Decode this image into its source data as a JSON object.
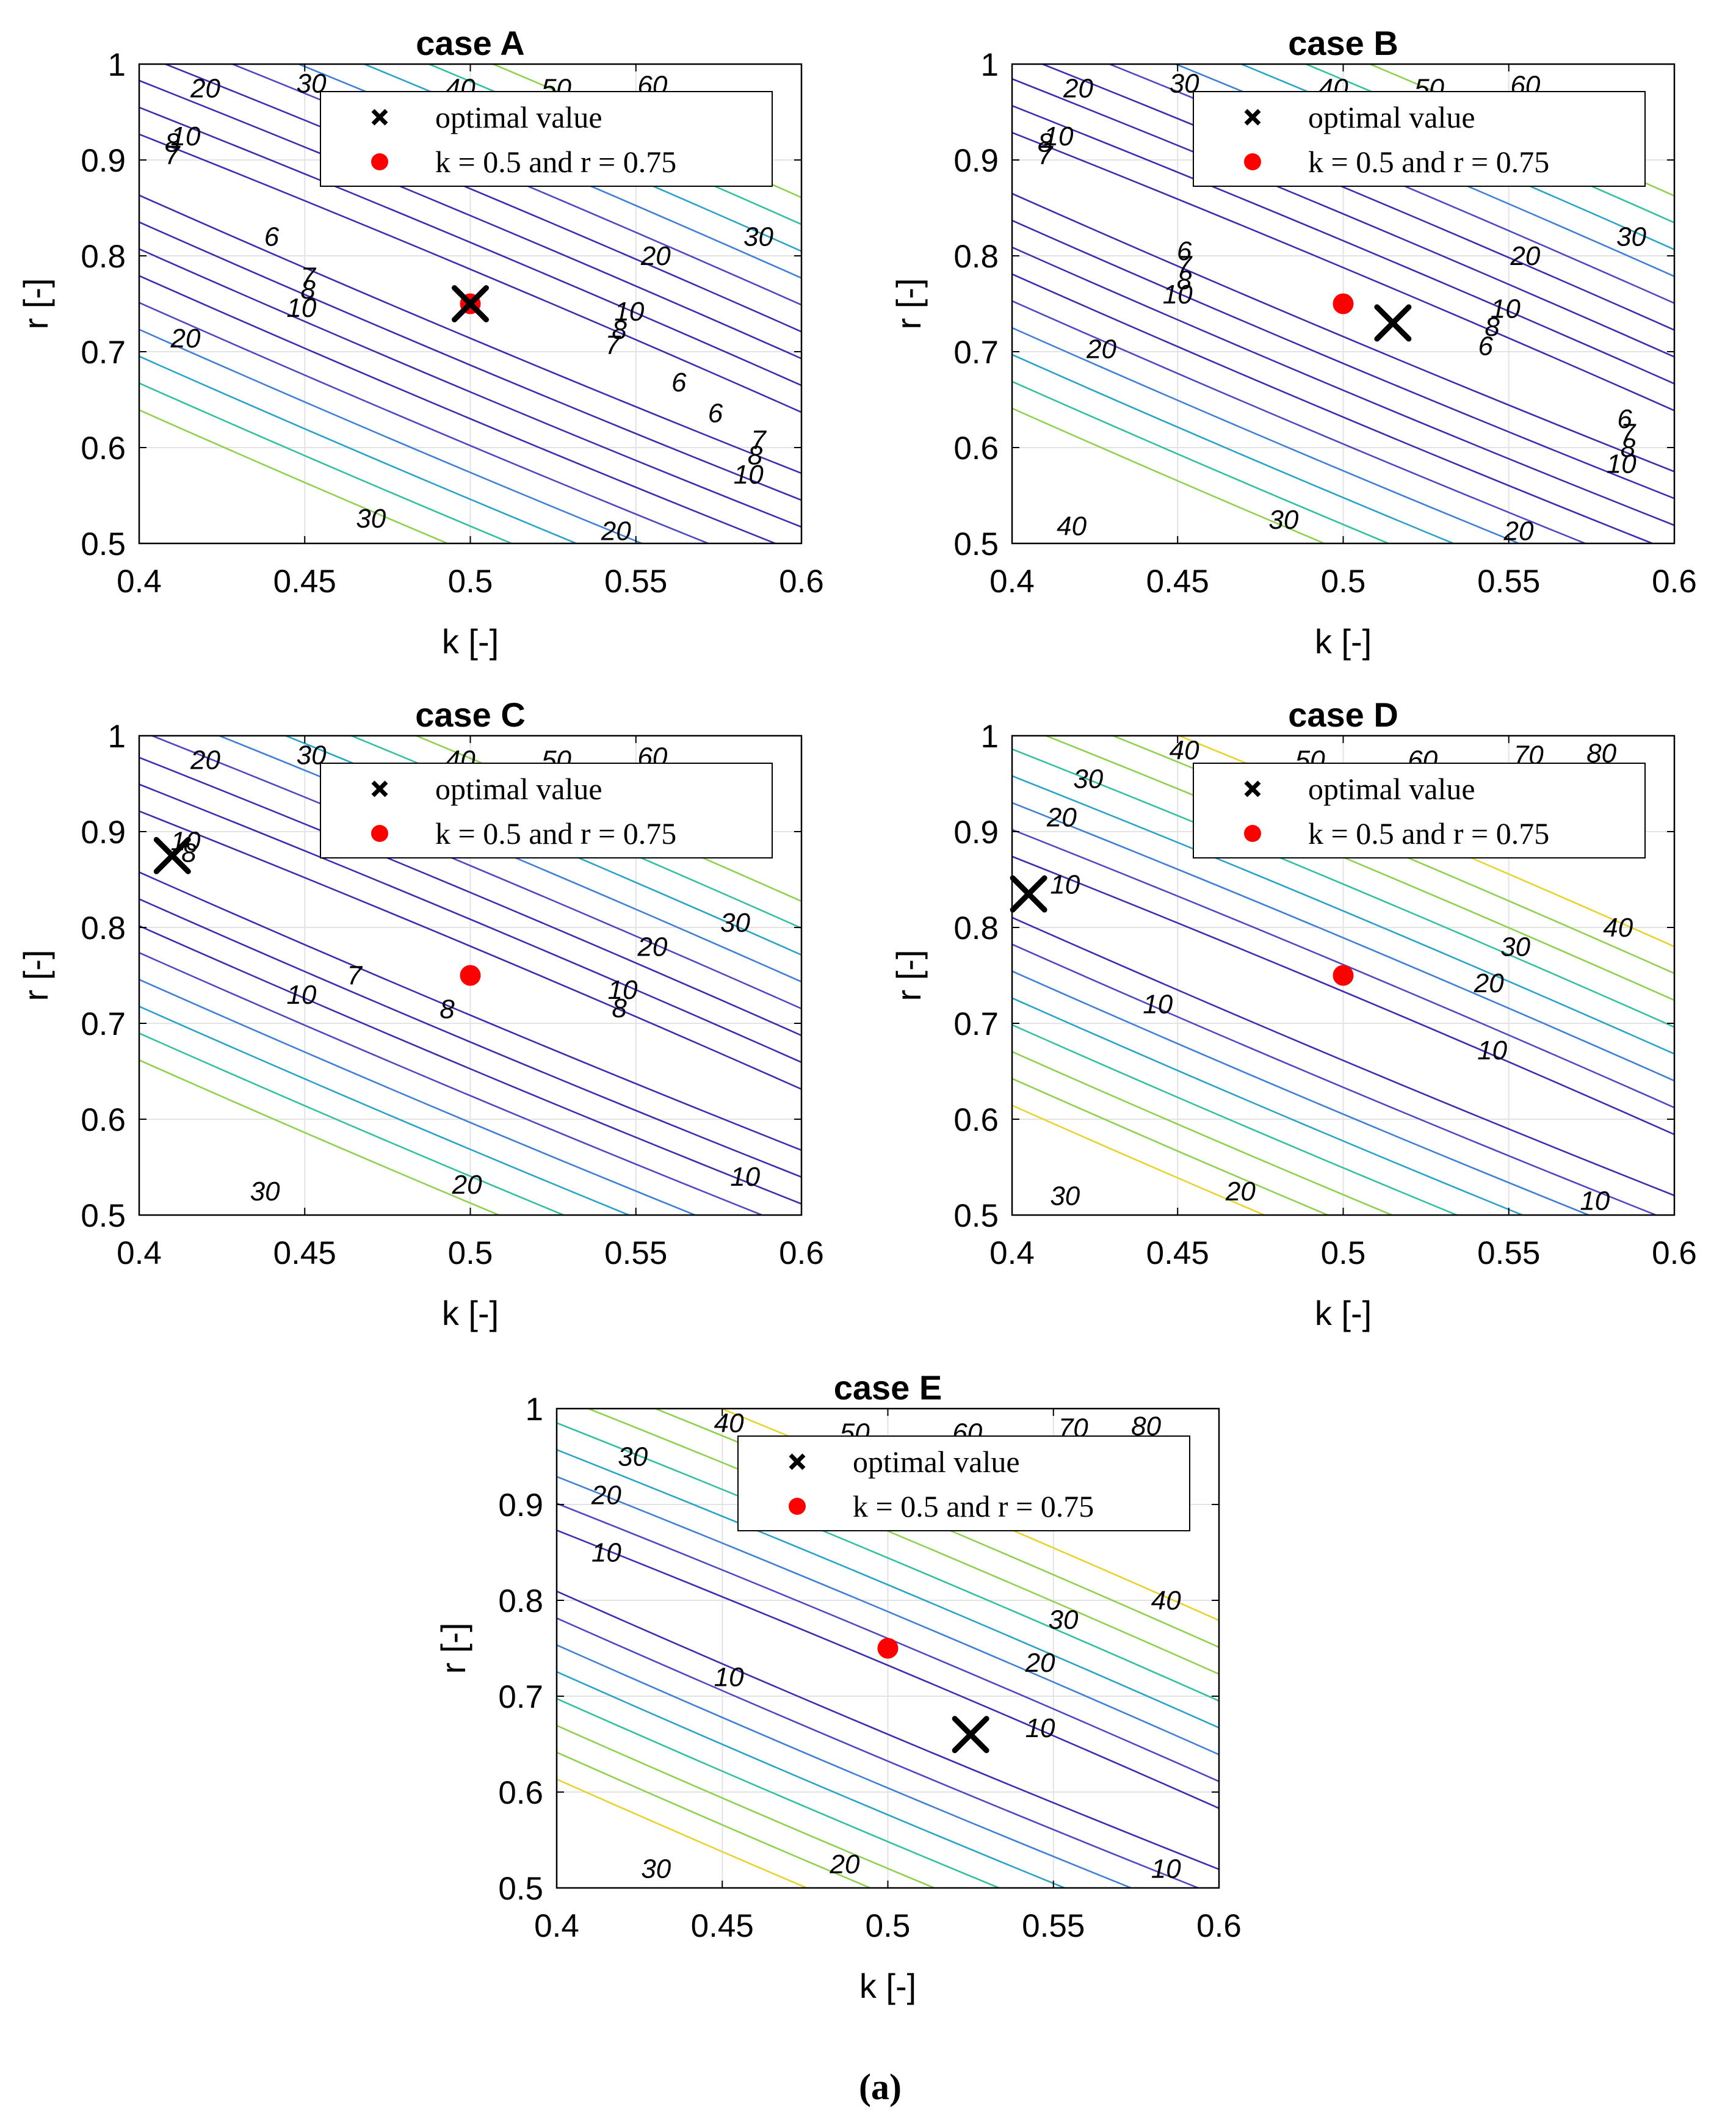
{
  "figure_caption": "(a)",
  "colors": {
    "contour_scale": [
      "#3b2db0",
      "#4f48c2",
      "#3f7fd6",
      "#2aa3c8",
      "#33bfa0",
      "#8fd14f",
      "#e8d32c"
    ],
    "optimal_marker": "#000000",
    "reference_marker": "#ff0000",
    "grid": "#e3e3e3",
    "axes": "#000000"
  },
  "chart_data": [
    {
      "type": "contour",
      "title": "case A",
      "xlabel": "k [-]",
      "ylabel": "r [-]",
      "xlim": [
        0.4,
        0.6
      ],
      "ylim": [
        0.5,
        1.0
      ],
      "xticks": [
        "0.4",
        "0.45",
        "0.5",
        "0.55",
        "0.6"
      ],
      "yticks": [
        "0.5",
        "0.6",
        "0.7",
        "0.8",
        "0.9",
        "1"
      ],
      "grid": true,
      "legend": {
        "location": "top-right",
        "entries": [
          "optimal value",
          "k = 0.5 and r = 0.75"
        ]
      },
      "optimal_point": {
        "k": 0.5,
        "r": 0.75
      },
      "reference_point": {
        "k": 0.5,
        "r": 0.75
      },
      "contour_levels": [
        6,
        7,
        8,
        10,
        20,
        30,
        40,
        50,
        60
      ],
      "contour_labels": [
        {
          "text": "20",
          "k": 0.42,
          "r": 0.975
        },
        {
          "text": "30",
          "k": 0.452,
          "r": 0.98
        },
        {
          "text": "40",
          "k": 0.497,
          "r": 0.975
        },
        {
          "text": "50",
          "k": 0.526,
          "r": 0.975
        },
        {
          "text": "60",
          "k": 0.555,
          "r": 0.978
        },
        {
          "text": "10",
          "k": 0.414,
          "r": 0.925
        },
        {
          "text": "8",
          "k": 0.41,
          "r": 0.918
        },
        {
          "text": "7",
          "k": 0.41,
          "r": 0.905
        },
        {
          "text": "6",
          "k": 0.44,
          "r": 0.82
        },
        {
          "text": "7",
          "k": 0.451,
          "r": 0.778
        },
        {
          "text": "8",
          "k": 0.451,
          "r": 0.765
        },
        {
          "text": "10",
          "k": 0.449,
          "r": 0.746
        },
        {
          "text": "20",
          "k": 0.414,
          "r": 0.714
        },
        {
          "text": "20",
          "k": 0.556,
          "r": 0.8
        },
        {
          "text": "30",
          "k": 0.587,
          "r": 0.82
        },
        {
          "text": "10",
          "k": 0.548,
          "r": 0.742
        },
        {
          "text": "8",
          "k": 0.545,
          "r": 0.723
        },
        {
          "text": "7",
          "k": 0.543,
          "r": 0.707
        },
        {
          "text": "6",
          "k": 0.563,
          "r": 0.668
        },
        {
          "text": "6",
          "k": 0.574,
          "r": 0.636
        },
        {
          "text": "7",
          "k": 0.587,
          "r": 0.608
        },
        {
          "text": "8",
          "k": 0.586,
          "r": 0.592
        },
        {
          "text": "10",
          "k": 0.584,
          "r": 0.572
        },
        {
          "text": "30",
          "k": 0.47,
          "r": 0.526
        },
        {
          "text": "20",
          "k": 0.544,
          "r": 0.513
        }
      ]
    },
    {
      "type": "contour",
      "title": "case B",
      "xlabel": "k [-]",
      "ylabel": "r [-]",
      "xlim": [
        0.4,
        0.6
      ],
      "ylim": [
        0.5,
        1.0
      ],
      "xticks": [
        "0.4",
        "0.45",
        "0.5",
        "0.55",
        "0.6"
      ],
      "yticks": [
        "0.5",
        "0.6",
        "0.7",
        "0.8",
        "0.9",
        "1"
      ],
      "grid": true,
      "legend": {
        "location": "top-right",
        "entries": [
          "optimal value",
          "k = 0.5 and r = 0.75"
        ]
      },
      "optimal_point": {
        "k": 0.515,
        "r": 0.73
      },
      "reference_point": {
        "k": 0.5,
        "r": 0.75
      },
      "contour_levels": [
        6,
        7,
        8,
        10,
        20,
        30,
        40,
        50,
        60
      ],
      "contour_labels": [
        {
          "text": "20",
          "k": 0.42,
          "r": 0.975
        },
        {
          "text": "30",
          "k": 0.452,
          "r": 0.98
        },
        {
          "text": "40",
          "k": 0.497,
          "r": 0.975
        },
        {
          "text": "50",
          "k": 0.526,
          "r": 0.975
        },
        {
          "text": "60",
          "k": 0.555,
          "r": 0.978
        },
        {
          "text": "10",
          "k": 0.414,
          "r": 0.925
        },
        {
          "text": "8",
          "k": 0.41,
          "r": 0.918
        },
        {
          "text": "7",
          "k": 0.41,
          "r": 0.905
        },
        {
          "text": "6",
          "k": 0.452,
          "r": 0.805
        },
        {
          "text": "7",
          "k": 0.452,
          "r": 0.79
        },
        {
          "text": "8",
          "k": 0.452,
          "r": 0.775
        },
        {
          "text": "10",
          "k": 0.45,
          "r": 0.76
        },
        {
          "text": "20",
          "k": 0.427,
          "r": 0.703
        },
        {
          "text": "20",
          "k": 0.555,
          "r": 0.8
        },
        {
          "text": "30",
          "k": 0.587,
          "r": 0.82
        },
        {
          "text": "10",
          "k": 0.549,
          "r": 0.745
        },
        {
          "text": "8",
          "k": 0.545,
          "r": 0.726
        },
        {
          "text": "6",
          "k": 0.543,
          "r": 0.706
        },
        {
          "text": "6",
          "k": 0.585,
          "r": 0.63
        },
        {
          "text": "7",
          "k": 0.586,
          "r": 0.615
        },
        {
          "text": "8",
          "k": 0.586,
          "r": 0.6
        },
        {
          "text": "10",
          "k": 0.584,
          "r": 0.583
        },
        {
          "text": "40",
          "k": 0.418,
          "r": 0.518
        },
        {
          "text": "30",
          "k": 0.482,
          "r": 0.525
        },
        {
          "text": "20",
          "k": 0.553,
          "r": 0.513
        }
      ]
    },
    {
      "type": "contour",
      "title": "case C",
      "xlabel": "k [-]",
      "ylabel": "r [-]",
      "xlim": [
        0.4,
        0.6
      ],
      "ylim": [
        0.5,
        1.0
      ],
      "xticks": [
        "0.4",
        "0.45",
        "0.5",
        "0.55",
        "0.6"
      ],
      "yticks": [
        "0.5",
        "0.6",
        "0.7",
        "0.8",
        "0.9",
        "1"
      ],
      "grid": true,
      "legend": {
        "location": "top-right",
        "entries": [
          "optimal value",
          "k = 0.5 and r = 0.75"
        ]
      },
      "optimal_point": {
        "k": 0.41,
        "r": 0.875
      },
      "reference_point": {
        "k": 0.5,
        "r": 0.75
      },
      "contour_levels": [
        7,
        8,
        10,
        20,
        30,
        40,
        50,
        60
      ],
      "contour_labels": [
        {
          "text": "20",
          "k": 0.42,
          "r": 0.975
        },
        {
          "text": "30",
          "k": 0.452,
          "r": 0.98
        },
        {
          "text": "40",
          "k": 0.497,
          "r": 0.975
        },
        {
          "text": "50",
          "k": 0.526,
          "r": 0.975
        },
        {
          "text": "60",
          "k": 0.555,
          "r": 0.978
        },
        {
          "text": "10",
          "k": 0.414,
          "r": 0.89
        },
        {
          "text": "8",
          "k": 0.415,
          "r": 0.878
        },
        {
          "text": "7",
          "k": 0.465,
          "r": 0.75
        },
        {
          "text": "10",
          "k": 0.449,
          "r": 0.73
        },
        {
          "text": "8",
          "k": 0.493,
          "r": 0.715
        },
        {
          "text": "20",
          "k": 0.555,
          "r": 0.78
        },
        {
          "text": "30",
          "k": 0.58,
          "r": 0.805
        },
        {
          "text": "10",
          "k": 0.546,
          "r": 0.735
        },
        {
          "text": "8",
          "k": 0.545,
          "r": 0.716
        },
        {
          "text": "10",
          "k": 0.583,
          "r": 0.54
        },
        {
          "text": "30",
          "k": 0.438,
          "r": 0.525
        },
        {
          "text": "20",
          "k": 0.499,
          "r": 0.532
        }
      ]
    },
    {
      "type": "contour",
      "title": "case D",
      "xlabel": "k [-]",
      "ylabel": "r [-]",
      "xlim": [
        0.4,
        0.6
      ],
      "ylim": [
        0.5,
        1.0
      ],
      "xticks": [
        "0.4",
        "0.45",
        "0.5",
        "0.55",
        "0.6"
      ],
      "yticks": [
        "0.5",
        "0.6",
        "0.7",
        "0.8",
        "0.9",
        "1"
      ],
      "grid": true,
      "legend": {
        "location": "top-right",
        "entries": [
          "optimal value",
          "k = 0.5 and r = 0.75"
        ]
      },
      "optimal_point": {
        "k": 0.405,
        "r": 0.835
      },
      "reference_point": {
        "k": 0.5,
        "r": 0.75
      },
      "contour_levels": [
        10,
        20,
        30,
        40,
        50,
        60,
        70,
        80
      ],
      "contour_labels": [
        {
          "text": "30",
          "k": 0.423,
          "r": 0.955
        },
        {
          "text": "40",
          "k": 0.452,
          "r": 0.985
        },
        {
          "text": "50",
          "k": 0.49,
          "r": 0.975
        },
        {
          "text": "60",
          "k": 0.524,
          "r": 0.975
        },
        {
          "text": "70",
          "k": 0.556,
          "r": 0.98
        },
        {
          "text": "80",
          "k": 0.578,
          "r": 0.982
        },
        {
          "text": "20",
          "k": 0.415,
          "r": 0.915
        },
        {
          "text": "10",
          "k": 0.416,
          "r": 0.845
        },
        {
          "text": "10",
          "k": 0.444,
          "r": 0.72
        },
        {
          "text": "30",
          "k": 0.552,
          "r": 0.78
        },
        {
          "text": "40",
          "k": 0.583,
          "r": 0.8
        },
        {
          "text": "20",
          "k": 0.544,
          "r": 0.742
        },
        {
          "text": "10",
          "k": 0.545,
          "r": 0.672
        },
        {
          "text": "10",
          "k": 0.576,
          "r": 0.515
        },
        {
          "text": "30",
          "k": 0.416,
          "r": 0.52
        },
        {
          "text": "20",
          "k": 0.469,
          "r": 0.525
        }
      ]
    },
    {
      "type": "contour",
      "title": "case E",
      "xlabel": "k [-]",
      "ylabel": "r [-]",
      "xlim": [
        0.4,
        0.6
      ],
      "ylim": [
        0.5,
        1.0
      ],
      "xticks": [
        "0.4",
        "0.45",
        "0.5",
        "0.55",
        "0.6"
      ],
      "yticks": [
        "0.5",
        "0.6",
        "0.7",
        "0.8",
        "0.9",
        "1"
      ],
      "grid": true,
      "legend": {
        "location": "top-right",
        "entries": [
          "optimal value",
          "k = 0.5 and r = 0.75"
        ]
      },
      "optimal_point": {
        "k": 0.525,
        "r": 0.66
      },
      "reference_point": {
        "k": 0.5,
        "r": 0.75
      },
      "contour_levels": [
        10,
        20,
        30,
        40,
        50,
        60,
        70,
        80
      ],
      "contour_labels": [
        {
          "text": "30",
          "k": 0.423,
          "r": 0.95
        },
        {
          "text": "40",
          "k": 0.452,
          "r": 0.985
        },
        {
          "text": "50",
          "k": 0.49,
          "r": 0.975
        },
        {
          "text": "60",
          "k": 0.524,
          "r": 0.975
        },
        {
          "text": "70",
          "k": 0.556,
          "r": 0.98
        },
        {
          "text": "80",
          "k": 0.578,
          "r": 0.982
        },
        {
          "text": "20",
          "k": 0.415,
          "r": 0.91
        },
        {
          "text": "10",
          "k": 0.415,
          "r": 0.85
        },
        {
          "text": "10",
          "k": 0.452,
          "r": 0.72
        },
        {
          "text": "30",
          "k": 0.553,
          "r": 0.78
        },
        {
          "text": "40",
          "k": 0.584,
          "r": 0.8
        },
        {
          "text": "20",
          "k": 0.546,
          "r": 0.735
        },
        {
          "text": "10",
          "k": 0.546,
          "r": 0.667
        },
        {
          "text": "10",
          "k": 0.584,
          "r": 0.52
        },
        {
          "text": "30",
          "k": 0.43,
          "r": 0.52
        },
        {
          "text": "20",
          "k": 0.487,
          "r": 0.525
        }
      ]
    }
  ]
}
